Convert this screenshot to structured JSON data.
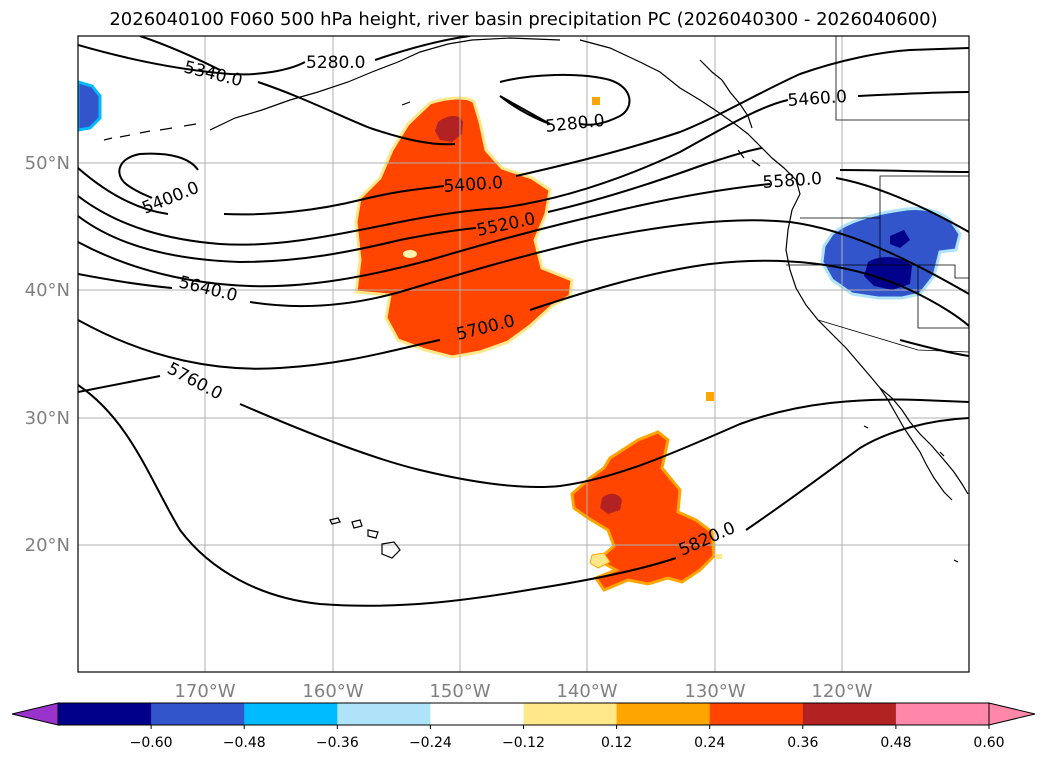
{
  "title": "2026040100 F060 500 hPa height, river basin precipitation PC (2026040300 - 2026040600)",
  "map": {
    "lat_labels": [
      "50°N",
      "40°N",
      "30°N",
      "20°N"
    ],
    "lon_labels": [
      "170°W",
      "160°W",
      "150°W",
      "140°W",
      "130°W",
      "120°W"
    ],
    "contour_labels": [
      "5280.0",
      "5340.0",
      "5280.0",
      "5460.0",
      "5400.0",
      "5400.0",
      "5520.0",
      "5580.0",
      "5640.0",
      "5700.0",
      "5760.0",
      "5820.0"
    ]
  },
  "colorbar": {
    "ticks": [
      "−0.60",
      "−0.48",
      "−0.36",
      "−0.24",
      "−0.12",
      "0.12",
      "0.24",
      "0.36",
      "0.48",
      "0.60"
    ],
    "colors": [
      "#9933cc",
      "#00008b",
      "#3355cc",
      "#00bbff",
      "#aee3fa",
      "#ffffff",
      "#ffe88a",
      "#ffa500",
      "#ff4500",
      "#b22222",
      "#ff88aa",
      "#ff88aa"
    ]
  }
}
